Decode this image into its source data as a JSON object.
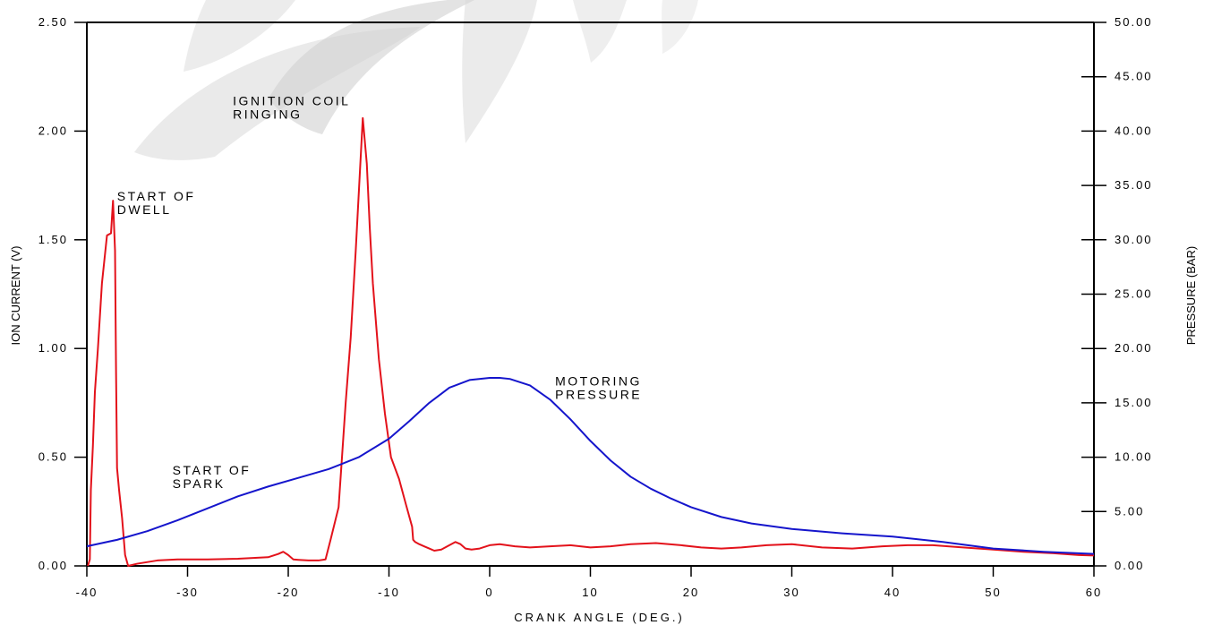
{
  "chart_data": {
    "type": "line",
    "xlabel": "CRANK ANGLE (DEG.)",
    "ylabel_left": "ION CURRENT (V)",
    "ylabel_right": "PRESSURE (BAR)",
    "xlim": [
      -40,
      60
    ],
    "ylim_left": [
      0,
      2.5
    ],
    "ylim_right": [
      0,
      50
    ],
    "grid": false,
    "x_ticks": [
      "-40",
      "-30",
      "-20",
      "-10",
      "0",
      "10",
      "20",
      "30",
      "40",
      "50",
      "60"
    ],
    "y_left_ticks": [
      "0.00",
      "0.50",
      "1.00",
      "1.50",
      "2.00",
      "2.50"
    ],
    "y_right_ticks": [
      "0.00",
      "5.00",
      "10.00",
      "15.00",
      "20.00",
      "25.00",
      "30.00",
      "35.00",
      "40.00",
      "45.00",
      "50.00"
    ],
    "annotations": [
      {
        "lines": [
          "START OF",
          "DWELL"
        ],
        "x": -37,
        "y": 1.68
      },
      {
        "lines": [
          "IGNITION COIL",
          "RINGING"
        ],
        "x": -25.5,
        "y": 2.12
      },
      {
        "lines": [
          "START OF",
          "SPARK"
        ],
        "x": -31.5,
        "y": 0.42
      },
      {
        "lines": [
          "MOTORING",
          "PRESSURE"
        ],
        "x": 6.5,
        "y": 0.83
      }
    ],
    "series": [
      {
        "axis": "left",
        "color": "#e3121b",
        "x": [
          -39.9,
          -39.7,
          -39.6,
          -39.4,
          -39.2,
          -38.9,
          -38.5,
          -38.0,
          -37.6,
          -37.4,
          -37.2,
          -37.1,
          -37.0,
          -36.8,
          -36.5,
          -36.2,
          -35.9,
          -35.0,
          -33.0,
          -31.0,
          -28.0,
          -25.0,
          -22.0,
          -21.0,
          -20.5,
          -20.0,
          -19.5,
          -19.0,
          -18.0,
          -17.0,
          -16.3,
          -15.8,
          -15.0,
          -14.3,
          -13.8,
          -13.3,
          -12.9,
          -12.6,
          -12.2,
          -11.9,
          -11.6,
          -11.0,
          -10.4,
          -9.8,
          -9.0,
          -8.3,
          -7.7,
          -7.6,
          -7.4,
          -7.0,
          -6.5,
          -6.0,
          -5.5,
          -4.8,
          -4.0,
          -3.4,
          -2.9,
          -2.4,
          -1.8,
          -1.0,
          0.0,
          1.0,
          2.5,
          4.0,
          6.0,
          8.0,
          10.0,
          12.0,
          14.0,
          16.5,
          19.0,
          21.0,
          23.0,
          25.0,
          27.5,
          30.0,
          33.0,
          36.0,
          39.0,
          41.5,
          44.0,
          47.0,
          50.0,
          53.0,
          56.0,
          58.5,
          60.0
        ],
        "y": [
          0.0,
          0.03,
          0.35,
          0.55,
          0.8,
          1.0,
          1.3,
          1.52,
          1.53,
          1.68,
          1.45,
          0.9,
          0.45,
          0.35,
          0.22,
          0.05,
          0.0,
          0.01,
          0.025,
          0.03,
          0.03,
          0.033,
          0.04,
          0.055,
          0.065,
          0.05,
          0.03,
          0.028,
          0.025,
          0.025,
          0.03,
          0.12,
          0.27,
          0.75,
          1.05,
          1.45,
          1.8,
          2.06,
          1.85,
          1.55,
          1.3,
          0.95,
          0.7,
          0.5,
          0.4,
          0.28,
          0.18,
          0.12,
          0.11,
          0.1,
          0.09,
          0.08,
          0.07,
          0.075,
          0.095,
          0.11,
          0.1,
          0.08,
          0.075,
          0.08,
          0.095,
          0.1,
          0.09,
          0.085,
          0.09,
          0.095,
          0.085,
          0.09,
          0.1,
          0.105,
          0.095,
          0.085,
          0.08,
          0.085,
          0.095,
          0.1,
          0.085,
          0.08,
          0.09,
          0.095,
          0.095,
          0.085,
          0.075,
          0.065,
          0.058,
          0.05,
          0.048
        ]
      },
      {
        "axis": "right",
        "color": "#1515cc",
        "x": [
          -40,
          -37,
          -34,
          -31,
          -28,
          -25,
          -22,
          -19,
          -16,
          -13,
          -10,
          -8,
          -6,
          -4,
          -2,
          0,
          1,
          2,
          4,
          6,
          8,
          10,
          12,
          14,
          16,
          18,
          20,
          23,
          26,
          30,
          35,
          40,
          45,
          50,
          55,
          60
        ],
        "y": [
          1.8,
          2.4,
          3.2,
          4.2,
          5.3,
          6.4,
          7.3,
          8.1,
          8.9,
          10.0,
          11.7,
          13.3,
          15.0,
          16.4,
          17.1,
          17.3,
          17.3,
          17.2,
          16.6,
          15.3,
          13.5,
          11.5,
          9.7,
          8.2,
          7.1,
          6.2,
          5.4,
          4.5,
          3.9,
          3.4,
          3.0,
          2.7,
          2.2,
          1.6,
          1.3,
          1.1
        ]
      }
    ]
  }
}
